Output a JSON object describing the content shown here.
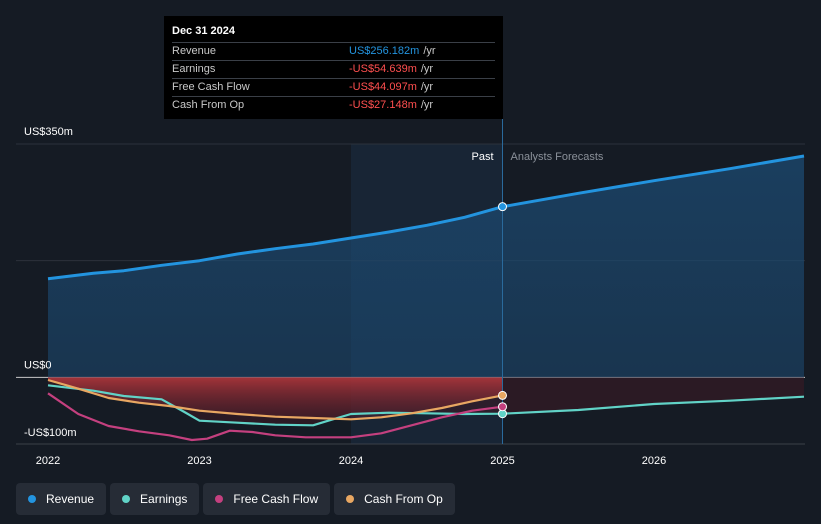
{
  "tooltip": {
    "date": "Dec 31 2024",
    "rows": [
      {
        "label": "Revenue",
        "value": "US$256.182m",
        "unit": "/yr"
      },
      {
        "label": "Earnings",
        "value": "-US$54.639m",
        "unit": "/yr"
      },
      {
        "label": "Free Cash Flow",
        "value": "-US$44.097m",
        "unit": "/yr"
      },
      {
        "label": "Cash From Op",
        "value": "-US$27.148m",
        "unit": "/yr"
      }
    ]
  },
  "labels": {
    "past": "Past",
    "forecast": "Analysts Forecasts"
  },
  "colors": {
    "revenue": "#2394df",
    "earnings": "#61d3c7",
    "fcf": "#c4407f",
    "cfo": "#e8a762",
    "background": "#151b24",
    "grid": "#2c323b"
  },
  "chart_data": {
    "type": "line",
    "x_label": "Year",
    "y_ticks": [
      {
        "value": 350,
        "label": "US$350m"
      },
      {
        "value": 0,
        "label": "US$0"
      },
      {
        "value": -100,
        "label": "-US$100m"
      }
    ],
    "ylim": [
      -100,
      350
    ],
    "xlim": [
      2021.99,
      2026.99
    ],
    "x_ticks": [
      {
        "value": 2022,
        "label": "2022"
      },
      {
        "value": 2023,
        "label": "2023"
      },
      {
        "value": 2024,
        "label": "2024"
      },
      {
        "value": 2025,
        "label": "2025"
      },
      {
        "value": 2026,
        "label": "2026"
      }
    ],
    "past_split": 2024.0,
    "highlight_x": 2025.0,
    "series": [
      {
        "name": "Revenue",
        "key": "revenue",
        "x": [
          2022.0,
          2022.3,
          2022.5,
          2022.75,
          2023.0,
          2023.25,
          2023.5,
          2023.75,
          2024.0,
          2024.25,
          2024.5,
          2024.75,
          2025.0,
          2025.5,
          2026.0,
          2026.5,
          2026.99
        ],
        "y": [
          148,
          156,
          160,
          168,
          175,
          185,
          193,
          200,
          209,
          218,
          228,
          240,
          256,
          276,
          295,
          313,
          332
        ]
      },
      {
        "name": "Earnings",
        "key": "earnings",
        "x": [
          2022.0,
          2022.3,
          2022.5,
          2022.75,
          2022.9,
          2023.0,
          2023.25,
          2023.5,
          2023.75,
          2023.85,
          2024.0,
          2024.25,
          2024.5,
          2024.75,
          2025.0,
          2025.5,
          2026.0,
          2026.5,
          2026.99
        ],
        "y": [
          -12,
          -20,
          -28,
          -33,
          -52,
          -65,
          -68,
          -71,
          -72,
          -65,
          -55,
          -53,
          -54,
          -55,
          -54.6,
          -49,
          -40,
          -35,
          -29
        ]
      },
      {
        "name": "Free Cash Flow",
        "key": "fcf",
        "x": [
          2022.0,
          2022.2,
          2022.4,
          2022.6,
          2022.8,
          2022.95,
          2023.05,
          2023.2,
          2023.35,
          2023.5,
          2023.7,
          2024.0,
          2024.2,
          2024.4,
          2024.6,
          2024.8,
          2025.0
        ],
        "y": [
          -24,
          -55,
          -73,
          -81,
          -87,
          -94,
          -92,
          -80,
          -82,
          -87,
          -90,
          -90,
          -84,
          -72,
          -60,
          -50,
          -44.1
        ]
      },
      {
        "name": "Cash From Op",
        "key": "cfo",
        "x": [
          2022.0,
          2022.2,
          2022.4,
          2022.6,
          2022.8,
          2023.0,
          2023.25,
          2023.5,
          2023.75,
          2024.0,
          2024.2,
          2024.4,
          2024.6,
          2024.8,
          2025.0
        ],
        "y": [
          -4,
          -17,
          -31,
          -38,
          -43,
          -50,
          -55,
          -59,
          -61,
          -63,
          -60,
          -54,
          -46,
          -36,
          -27.1
        ]
      }
    ],
    "legend": [
      "Revenue",
      "Earnings",
      "Free Cash Flow",
      "Cash From Op"
    ]
  }
}
